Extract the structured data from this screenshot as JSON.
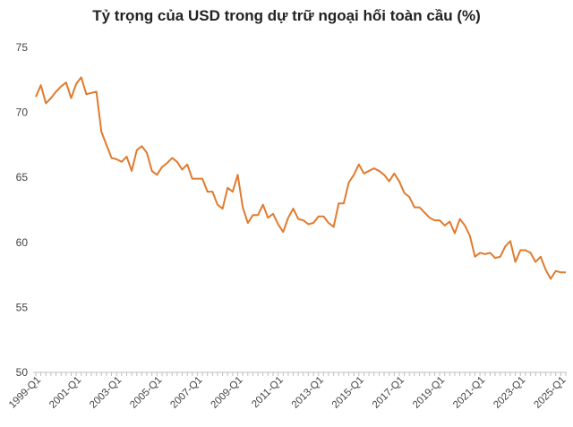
{
  "chart_data": {
    "type": "line",
    "title": "Tỷ trọng của USD trong dự trữ ngoại hối toàn cầu (%)",
    "xlabel": "",
    "ylabel": "",
    "ylim": [
      50,
      75
    ],
    "yticks": [
      50,
      55,
      60,
      65,
      70,
      75
    ],
    "xtick_labels": [
      "1999-Q1",
      "2001-Q1",
      "2003-Q1",
      "2005-Q1",
      "2007-Q1",
      "2009-Q1",
      "2011-Q1",
      "2013-Q1",
      "2015-Q1",
      "2017-Q1",
      "2019-Q1",
      "2021-Q1",
      "2023-Q1",
      "2025-Q1"
    ],
    "grid": false,
    "legend": "none",
    "colors": {
      "line": "#e07b2e",
      "axis": "#bfbfbf"
    },
    "series": [
      {
        "x": [
          "1999-Q1",
          "1999-Q2",
          "1999-Q3",
          "1999-Q4",
          "2000-Q1",
          "2000-Q2",
          "2000-Q3",
          "2000-Q4",
          "2001-Q1",
          "2001-Q2",
          "2001-Q3",
          "2001-Q4",
          "2002-Q1",
          "2002-Q2",
          "2002-Q3",
          "2002-Q4",
          "2003-Q1",
          "2003-Q2",
          "2003-Q3",
          "2003-Q4",
          "2004-Q1",
          "2004-Q2",
          "2004-Q3",
          "2004-Q4",
          "2005-Q1",
          "2005-Q2",
          "2005-Q3",
          "2005-Q4",
          "2006-Q1",
          "2006-Q2",
          "2006-Q3",
          "2006-Q4",
          "2007-Q1",
          "2007-Q2",
          "2007-Q3",
          "2007-Q4",
          "2008-Q1",
          "2008-Q2",
          "2008-Q3",
          "2008-Q4",
          "2009-Q1",
          "2009-Q2",
          "2009-Q3",
          "2009-Q4",
          "2010-Q1",
          "2010-Q2",
          "2010-Q3",
          "2010-Q4",
          "2011-Q1",
          "2011-Q2",
          "2011-Q3",
          "2011-Q4",
          "2012-Q1",
          "2012-Q2",
          "2012-Q3",
          "2012-Q4",
          "2013-Q1",
          "2013-Q2",
          "2013-Q3",
          "2013-Q4",
          "2014-Q1",
          "2014-Q2",
          "2014-Q3",
          "2014-Q4",
          "2015-Q1",
          "2015-Q2",
          "2015-Q3",
          "2015-Q4",
          "2016-Q1",
          "2016-Q2",
          "2016-Q3",
          "2016-Q4",
          "2017-Q1",
          "2017-Q2",
          "2017-Q3",
          "2017-Q4",
          "2018-Q1",
          "2018-Q2",
          "2018-Q3",
          "2018-Q4",
          "2019-Q1",
          "2019-Q2",
          "2019-Q3",
          "2019-Q4",
          "2020-Q1",
          "2020-Q2",
          "2020-Q3",
          "2020-Q4",
          "2021-Q1",
          "2021-Q2",
          "2021-Q3",
          "2021-Q4",
          "2022-Q1",
          "2022-Q2",
          "2022-Q3",
          "2022-Q4",
          "2023-Q1",
          "2023-Q2",
          "2023-Q3",
          "2023-Q4",
          "2024-Q1",
          "2024-Q2",
          "2024-Q3",
          "2024-Q4",
          "2025-Q1",
          "2025-Q2"
        ],
        "values": [
          71.2,
          72.1,
          70.7,
          71.1,
          71.6,
          72.0,
          72.3,
          71.1,
          72.2,
          72.7,
          71.4,
          71.5,
          71.6,
          68.5,
          67.5,
          66.5,
          66.4,
          66.2,
          66.6,
          65.5,
          67.1,
          67.4,
          66.9,
          65.5,
          65.2,
          65.8,
          66.1,
          66.5,
          66.2,
          65.6,
          66.0,
          64.9,
          64.9,
          64.9,
          63.9,
          63.9,
          62.9,
          62.6,
          64.2,
          63.9,
          65.2,
          62.7,
          61.5,
          62.1,
          62.1,
          62.9,
          61.9,
          62.2,
          61.4,
          60.8,
          61.9,
          62.6,
          61.8,
          61.7,
          61.4,
          61.5,
          62.0,
          62.0,
          61.5,
          61.2,
          63.0,
          63.0,
          64.6,
          65.2,
          66.0,
          65.3,
          65.5,
          65.7,
          65.5,
          65.2,
          64.7,
          65.3,
          64.7,
          63.8,
          63.5,
          62.7,
          62.7,
          62.3,
          61.9,
          61.7,
          61.7,
          61.3,
          61.6,
          60.7,
          61.8,
          61.3,
          60.5,
          58.9,
          59.2,
          59.1,
          59.2,
          58.8,
          58.9,
          59.7,
          60.1,
          58.5,
          59.4,
          59.4,
          59.2,
          58.5,
          58.9,
          57.9,
          57.2,
          57.8,
          57.7,
          57.7
        ]
      }
    ]
  }
}
